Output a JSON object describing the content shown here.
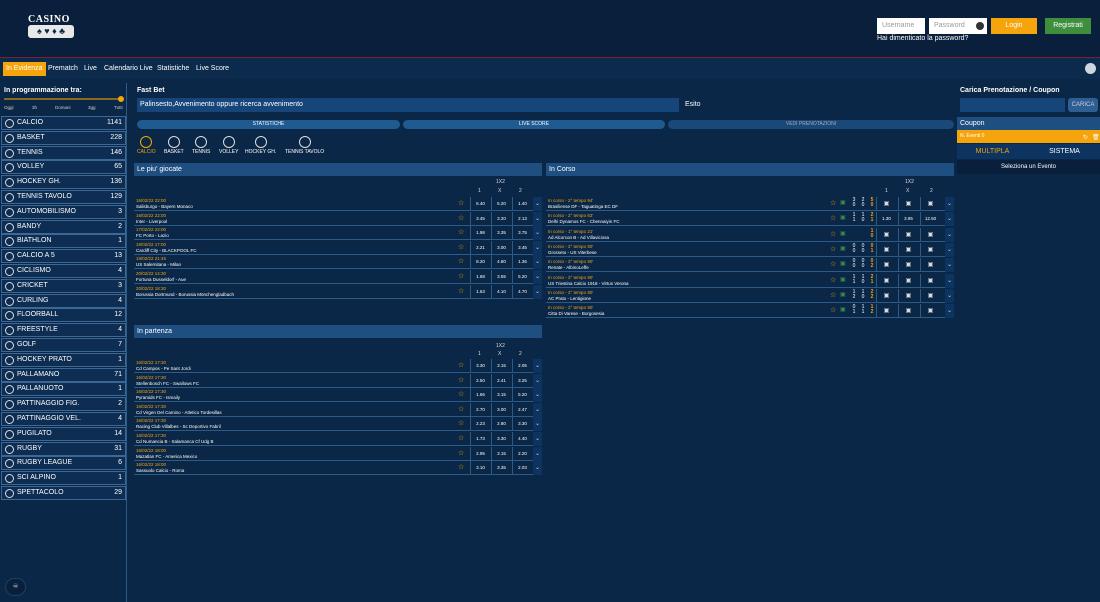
{
  "header": {
    "logo_top": "CASINO",
    "logo_bottom": "♠ ♥ ♦ ♣",
    "username_placeholder": "Username",
    "password_placeholder": "Password",
    "login": "Login",
    "register": "Registrati",
    "forgot": "Hai dimenticato la password?"
  },
  "nav": [
    "In Evidenza",
    "Prematch",
    "Live",
    "Calendario Live",
    "Statistiche",
    "Live Score"
  ],
  "sidebar": {
    "title": "In programmazione tra:",
    "ticks": [
      "Oggi",
      "3h",
      "Domani",
      "3gg",
      "Tutti"
    ],
    "sports": [
      [
        "CALCIO",
        "1141"
      ],
      [
        "BASKET",
        "228"
      ],
      [
        "TENNIS",
        "146"
      ],
      [
        "VOLLEY",
        "65"
      ],
      [
        "HOCKEY GH.",
        "136"
      ],
      [
        "TENNIS TAVOLO",
        "129"
      ],
      [
        "AUTOMOBILISMO",
        "3"
      ],
      [
        "BANDY",
        "2"
      ],
      [
        "BIATHLON",
        "1"
      ],
      [
        "CALCIO A 5",
        "13"
      ],
      [
        "CICLISMO",
        "4"
      ],
      [
        "CRICKET",
        "3"
      ],
      [
        "CURLING",
        "4"
      ],
      [
        "FLOORBALL",
        "12"
      ],
      [
        "FREESTYLE",
        "4"
      ],
      [
        "GOLF",
        "7"
      ],
      [
        "HOCKEY PRATO",
        "1"
      ],
      [
        "PALLAMANO",
        "71"
      ],
      [
        "PALLANUOTO",
        "1"
      ],
      [
        "PATTINAGGIO FIG.",
        "2"
      ],
      [
        "PATTINAGGIO VEL.",
        "4"
      ],
      [
        "PUGILATO",
        "14"
      ],
      [
        "RUGBY",
        "31"
      ],
      [
        "RUGBY LEAGUE",
        "6"
      ],
      [
        "SCI ALPINO",
        "1"
      ],
      [
        "SPETTACOLO",
        "29"
      ]
    ]
  },
  "fastbet": {
    "title": "Fast Bet",
    "search": "Palinsesto,Avvenimento oppure ricerca avvenimento",
    "esito": "Esito",
    "tabs": [
      "STATISTICHE",
      "LIVE SCORE",
      "VEDI PRENOTAZIONI"
    ],
    "sports": [
      "CALCIO",
      "BASKET",
      "TENNIS",
      "VOLLEY",
      "HOCKEY GH.",
      "TENNIS TAVOLO"
    ]
  },
  "popular": {
    "title": "Le piu' giocate",
    "market": "1X2",
    "cols": [
      "1",
      "X",
      "2"
    ],
    "rows": [
      [
        "16/02/22 22:00",
        "Salisburgo - Bayern Monaco",
        "6.40",
        "5.20",
        "1.40"
      ],
      [
        "16/02/22 22:00",
        "Inter - Liverpool",
        "3.45",
        "3.20",
        "2.13"
      ],
      [
        "17/02/22 22:00",
        "FC Porto - Lazio",
        "1.98",
        "3.35",
        "3.75"
      ],
      [
        "19/02/22 17:00",
        "Cardiff City - BLACKPOOL FC",
        "2.21",
        "3.00",
        "3.45"
      ],
      [
        "19/02/22 21:45",
        "US Salernitana - Milan",
        "8.20",
        "4.80",
        "1.36"
      ],
      [
        "20/02/22 14:30",
        "Fortuna Dusseldorf - Aue",
        "1.68",
        "3.55",
        "5.20"
      ],
      [
        "20/02/22 18:30",
        "Borussia Dortmund - Borussia Mönchengladbach",
        "1.63",
        "4.10",
        "4.70"
      ]
    ]
  },
  "starting": {
    "title": "In partenza",
    "market": "1X2",
    "cols": [
      "1",
      "X",
      "2"
    ],
    "rows": [
      [
        "16/02/22 17:30",
        "Cd Campos - Pe Sant Jordi",
        "3.30",
        "3.15",
        "2.05"
      ],
      [
        "16/02/22 17:30",
        "Stellenbosch FC - Swallows FC",
        "2.50",
        "2.41",
        "3.25"
      ],
      [
        "16/02/22 17:30",
        "Pyramids FC - Ismaily",
        "1.66",
        "3.15",
        "5.20"
      ],
      [
        "16/02/22 17:30",
        "Cd Virgen Del Camino - Atletico Tordesillas",
        "2.70",
        "3.00",
        "2.47"
      ],
      [
        "16/02/22 17:30",
        "Racing Club Villalbes - Sc Deportivo Fabril",
        "2.23",
        "2.80",
        "3.30"
      ],
      [
        "16/02/22 17:30",
        "Cd Numancia B - Salamanca Cf Udg B",
        "1.73",
        "3.30",
        "4.40"
      ],
      [
        "16/02/22 18:00",
        "Mazatlan FC - America Mexico",
        "2.95",
        "3.15",
        "2.20"
      ],
      [
        "16/02/22 18:00",
        "Sassuolo Calcio - Roma",
        "3.10",
        "3.35",
        "2.03"
      ]
    ]
  },
  "live": {
    "title": "In Corso",
    "market": "1X2",
    "cols": [
      "1",
      "X",
      "2"
    ],
    "rows": [
      [
        "In corso - 2° tempo 94'",
        "Brasiliense DF - Taguatinga EC DF",
        [
          "3",
          "0"
        ],
        [
          "2",
          "0"
        ],
        [
          "5",
          "0"
        ],
        "",
        "",
        ""
      ],
      [
        "In corso - 2° tempo 63'",
        "Delhi Dynamos FC - Chennaiyin FC",
        [
          "1",
          "1"
        ],
        [
          "1",
          "0"
        ],
        [
          "2",
          "1"
        ],
        "1.30",
        "3.95",
        "12.50"
      ],
      [
        "In corso - 1° tempo 21'",
        "Ad Alcorcon B - Ad Villaviciosa",
        [
          "",
          ""
        ],
        [
          "",
          ""
        ],
        [
          "1",
          "0"
        ],
        "",
        "",
        ""
      ],
      [
        "In corso - 2° tempo 90'",
        "Grosseto - US Viterbese",
        [
          "0",
          "0"
        ],
        [
          "0",
          "0"
        ],
        [
          "0",
          "1"
        ],
        "",
        "",
        ""
      ],
      [
        "In corso - 2° tempo 90'",
        "Renate - AlbinoLeffe",
        [
          "0",
          "0"
        ],
        [
          "0",
          "0"
        ],
        [
          "0",
          "2"
        ],
        "",
        "",
        ""
      ],
      [
        "In corso - 2° tempo 90'",
        "US Triestina Calcio 1918 - Virtus Verona",
        [
          "1",
          "1"
        ],
        [
          "1",
          "0"
        ],
        [
          "2",
          "1"
        ],
        "",
        "",
        ""
      ],
      [
        "In corso - 2° tempo 90'",
        "AC Prato - Lentigione",
        [
          "1",
          "2"
        ],
        [
          "1",
          "0"
        ],
        [
          "2",
          "2"
        ],
        "",
        "",
        ""
      ],
      [
        "In corso - 2° tempo 90'",
        "Citta Di Varese - Borgosesia",
        [
          "0",
          "1"
        ],
        [
          "1",
          "1"
        ],
        [
          "1",
          "2"
        ],
        "",
        "",
        ""
      ]
    ]
  },
  "coupon": {
    "load_title": "Carica Prenotazione / Coupon",
    "load_button": "CARICA",
    "title": "Coupon",
    "events": "N. Eventi 0",
    "tab_multi": "MULTIPLA",
    "tab_system": "SISTEMA",
    "select": "Seleziona un Evento"
  },
  "chat": "♾"
}
